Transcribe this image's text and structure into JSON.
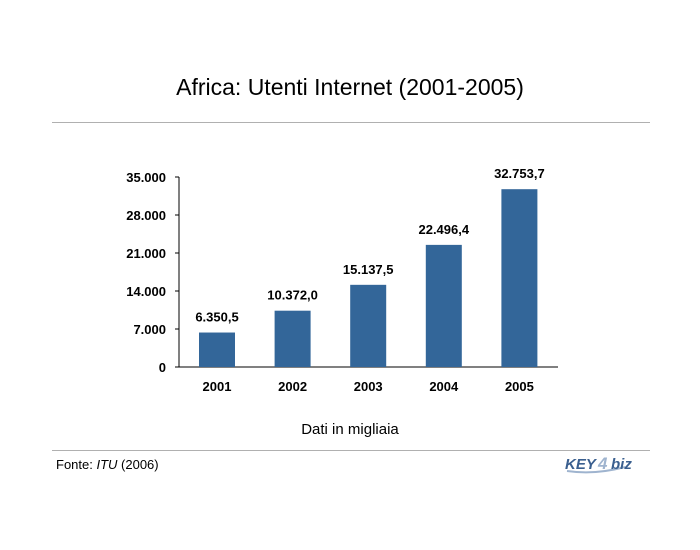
{
  "title": "Africa: Utenti Internet (2001-2005)",
  "caption": "Dati in migliaia",
  "source": {
    "prefix": "Fonte: ",
    "name": "ITU",
    "suffix": " (2006)"
  },
  "logo": {
    "text_key": "KEY",
    "text_4": "4",
    "text_biz": "biz",
    "color": "#3a5f8f"
  },
  "colors": {
    "bar": "#336699",
    "axis": "#000000"
  },
  "chart_data": {
    "type": "bar",
    "categories": [
      "2001",
      "2002",
      "2003",
      "2004",
      "2005"
    ],
    "values": [
      6350.5,
      10372.0,
      15137.5,
      22496.4,
      32753.7
    ],
    "value_labels": [
      "6.350,5",
      "10.372,0",
      "15.137,5",
      "22.496,4",
      "32.753,7"
    ],
    "y_ticks": [
      0,
      7000,
      14000,
      21000,
      28000,
      35000
    ],
    "y_tick_labels": [
      "0",
      "7.000",
      "14.000",
      "21.000",
      "28.000",
      "35.000"
    ],
    "ylim": [
      0,
      35000
    ],
    "xlabel": "Dati in migliaia",
    "ylabel": "",
    "grid": false,
    "legend": "none"
  }
}
